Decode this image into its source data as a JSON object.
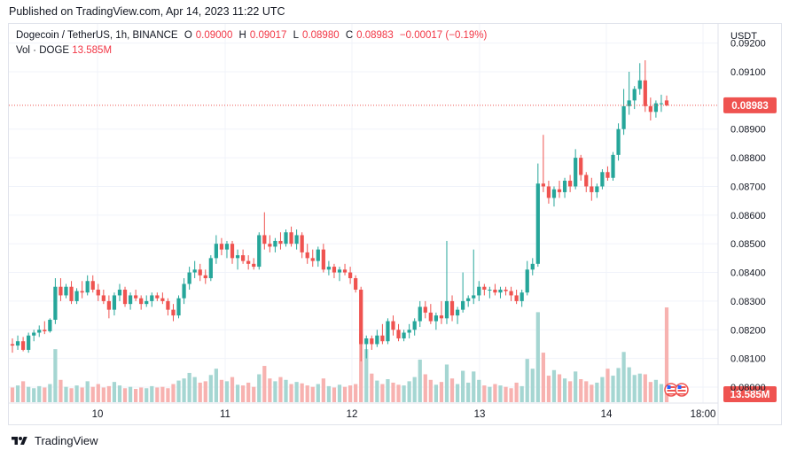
{
  "published": "Published on TradingView.com, Apr 14, 2023 11:22 UTC",
  "legend": {
    "symbol": "Dogecoin / TetherUS, 1h, BINANCE",
    "o_label": "O",
    "o": "0.09000",
    "h_label": "H",
    "h": "0.09017",
    "l_label": "L",
    "l": "0.08980",
    "c_label": "C",
    "c": "0.08983",
    "change": "−0.00017 (−0.19%)",
    "vol_label": "Vol · DOGE",
    "vol_value": "13.585M"
  },
  "footer": {
    "brand": "TradingView"
  },
  "colors": {
    "up": "#26a69a",
    "down": "#ef5350",
    "up_vol": "#a5d6d2",
    "down_vol": "#f7b2b0",
    "price_line": "#ef5350",
    "grid": "#f0f3fa"
  },
  "chart_data": {
    "type": "candlestick",
    "currency_label": "USDT",
    "y_ticks": [
      "0.08000",
      "0.08100",
      "0.08200",
      "0.08300",
      "0.08400",
      "0.08500",
      "0.08600",
      "0.08700",
      "0.08800",
      "0.08900",
      "0.09100",
      "0.09200"
    ],
    "x_ticks": [
      "10",
      "11",
      "12",
      "13",
      "14",
      "18:00"
    ],
    "last_price": "0.08983",
    "last_volume": "13.585M",
    "candles": [
      [
        0.0815,
        0.0817,
        0.0812,
        0.08145
      ],
      [
        0.08145,
        0.0818,
        0.0813,
        0.0816
      ],
      [
        0.0816,
        0.08175,
        0.08125,
        0.0813
      ],
      [
        0.0813,
        0.0819,
        0.0812,
        0.0818
      ],
      [
        0.0818,
        0.082,
        0.0816,
        0.0819
      ],
      [
        0.0819,
        0.08215,
        0.08175,
        0.082
      ],
      [
        0.082,
        0.0823,
        0.08185,
        0.08195
      ],
      [
        0.08195,
        0.0824,
        0.0819,
        0.08235
      ],
      [
        0.08235,
        0.0838,
        0.0822,
        0.0835
      ],
      [
        0.0835,
        0.0838,
        0.083,
        0.0832
      ],
      [
        0.0832,
        0.0836,
        0.0831,
        0.0835
      ],
      [
        0.0835,
        0.0837,
        0.0829,
        0.083
      ],
      [
        0.083,
        0.08345,
        0.0829,
        0.08335
      ],
      [
        0.08335,
        0.0837,
        0.0831,
        0.0833
      ],
      [
        0.0833,
        0.0839,
        0.0832,
        0.0837
      ],
      [
        0.0837,
        0.0839,
        0.0833,
        0.0834
      ],
      [
        0.0834,
        0.0836,
        0.083,
        0.0832
      ],
      [
        0.0832,
        0.0834,
        0.0829,
        0.083
      ],
      [
        0.083,
        0.0832,
        0.0824,
        0.0827
      ],
      [
        0.0827,
        0.0833,
        0.0825,
        0.0832
      ],
      [
        0.0832,
        0.0836,
        0.083,
        0.0834
      ],
      [
        0.0834,
        0.0835,
        0.0828,
        0.0829
      ],
      [
        0.0829,
        0.0833,
        0.0827,
        0.0832
      ],
      [
        0.0832,
        0.0834,
        0.083,
        0.0831
      ],
      [
        0.0831,
        0.0832,
        0.0827,
        0.0829
      ],
      [
        0.0829,
        0.0832,
        0.0828,
        0.083
      ],
      [
        0.083,
        0.0833,
        0.0828,
        0.0832
      ],
      [
        0.0832,
        0.0833,
        0.083,
        0.0831
      ],
      [
        0.0831,
        0.0833,
        0.0829,
        0.083
      ],
      [
        0.083,
        0.0831,
        0.0825,
        0.0827
      ],
      [
        0.0827,
        0.0829,
        0.0823,
        0.0825
      ],
      [
        0.0825,
        0.0832,
        0.0824,
        0.0831
      ],
      [
        0.0831,
        0.0838,
        0.0829,
        0.0836
      ],
      [
        0.0836,
        0.0842,
        0.0834,
        0.084
      ],
      [
        0.084,
        0.0844,
        0.0838,
        0.0841
      ],
      [
        0.0841,
        0.0843,
        0.0837,
        0.0839
      ],
      [
        0.0839,
        0.0841,
        0.0836,
        0.0838
      ],
      [
        0.0838,
        0.0846,
        0.0837,
        0.0845
      ],
      [
        0.0845,
        0.0853,
        0.0843,
        0.085
      ],
      [
        0.085,
        0.0852,
        0.0846,
        0.0848
      ],
      [
        0.0848,
        0.0851,
        0.0845,
        0.085
      ],
      [
        0.085,
        0.0851,
        0.0843,
        0.0845
      ],
      [
        0.0845,
        0.0848,
        0.0841,
        0.0846
      ],
      [
        0.0846,
        0.0848,
        0.0843,
        0.0844
      ],
      [
        0.0844,
        0.0846,
        0.0841,
        0.0843
      ],
      [
        0.0843,
        0.0845,
        0.0841,
        0.0842
      ],
      [
        0.0842,
        0.0854,
        0.0841,
        0.0853
      ],
      [
        0.0853,
        0.0861,
        0.0848,
        0.085
      ],
      [
        0.085,
        0.0853,
        0.0847,
        0.0849
      ],
      [
        0.0849,
        0.0852,
        0.0847,
        0.0851
      ],
      [
        0.0851,
        0.0854,
        0.0848,
        0.085
      ],
      [
        0.085,
        0.0855,
        0.0849,
        0.0854
      ],
      [
        0.0854,
        0.0856,
        0.0849,
        0.085
      ],
      [
        0.085,
        0.0855,
        0.0848,
        0.0853
      ],
      [
        0.0853,
        0.0854,
        0.0845,
        0.0847
      ],
      [
        0.0847,
        0.085,
        0.0843,
        0.0845
      ],
      [
        0.0845,
        0.0848,
        0.0842,
        0.0844
      ],
      [
        0.0844,
        0.0849,
        0.0842,
        0.0848
      ],
      [
        0.0848,
        0.085,
        0.084,
        0.0841
      ],
      [
        0.0841,
        0.0844,
        0.0839,
        0.0842
      ],
      [
        0.0842,
        0.0843,
        0.0838,
        0.084
      ],
      [
        0.084,
        0.0842,
        0.0837,
        0.0841
      ],
      [
        0.0841,
        0.0843,
        0.0839,
        0.084
      ],
      [
        0.084,
        0.0842,
        0.0836,
        0.0838
      ],
      [
        0.0838,
        0.0839,
        0.0833,
        0.0834
      ],
      [
        0.0834,
        0.0835,
        0.0809,
        0.0815
      ],
      [
        0.0815,
        0.0818,
        0.081,
        0.0817
      ],
      [
        0.0817,
        0.0818,
        0.0813,
        0.0815
      ],
      [
        0.0815,
        0.082,
        0.0814,
        0.0818
      ],
      [
        0.0818,
        0.0822,
        0.0815,
        0.0816
      ],
      [
        0.0816,
        0.0824,
        0.0815,
        0.0823
      ],
      [
        0.0823,
        0.0825,
        0.0818,
        0.082
      ],
      [
        0.082,
        0.0822,
        0.0816,
        0.0817
      ],
      [
        0.0817,
        0.082,
        0.0816,
        0.0819
      ],
      [
        0.0819,
        0.0822,
        0.0817,
        0.082
      ],
      [
        0.082,
        0.0824,
        0.0818,
        0.0823
      ],
      [
        0.0823,
        0.083,
        0.0821,
        0.0828
      ],
      [
        0.0828,
        0.083,
        0.0824,
        0.0826
      ],
      [
        0.0826,
        0.0829,
        0.0822,
        0.0823
      ],
      [
        0.0823,
        0.0826,
        0.082,
        0.0825
      ],
      [
        0.0825,
        0.083,
        0.0822,
        0.0824
      ],
      [
        0.0824,
        0.0851,
        0.0822,
        0.083
      ],
      [
        0.083,
        0.0832,
        0.0823,
        0.0825
      ],
      [
        0.0825,
        0.0828,
        0.0822,
        0.0827
      ],
      [
        0.0827,
        0.084,
        0.0826,
        0.083
      ],
      [
        0.083,
        0.0832,
        0.0828,
        0.0831
      ],
      [
        0.0831,
        0.0848,
        0.0829,
        0.0832
      ],
      [
        0.0832,
        0.0837,
        0.083,
        0.0835
      ],
      [
        0.0835,
        0.0836,
        0.0832,
        0.0834
      ],
      [
        0.0834,
        0.0835,
        0.0831,
        0.0834
      ],
      [
        0.0834,
        0.0836,
        0.0832,
        0.0833
      ],
      [
        0.0833,
        0.0835,
        0.0831,
        0.0834
      ],
      [
        0.0834,
        0.0835,
        0.0832,
        0.08335
      ],
      [
        0.08335,
        0.0835,
        0.083,
        0.0832
      ],
      [
        0.0832,
        0.0834,
        0.0829,
        0.083
      ],
      [
        0.083,
        0.0834,
        0.0828,
        0.0833
      ],
      [
        0.0833,
        0.0844,
        0.0832,
        0.0841
      ],
      [
        0.0841,
        0.0845,
        0.0839,
        0.0843
      ],
      [
        0.0843,
        0.0878,
        0.0842,
        0.0871
      ],
      [
        0.0871,
        0.0888,
        0.0868,
        0.087
      ],
      [
        0.087,
        0.0872,
        0.0864,
        0.0866
      ],
      [
        0.0866,
        0.087,
        0.0863,
        0.0869
      ],
      [
        0.0869,
        0.0872,
        0.0866,
        0.0868
      ],
      [
        0.0868,
        0.0873,
        0.0866,
        0.0872
      ],
      [
        0.0872,
        0.0874,
        0.0868,
        0.087
      ],
      [
        0.087,
        0.0883,
        0.0869,
        0.088
      ],
      [
        0.088,
        0.0881,
        0.0872,
        0.0874
      ],
      [
        0.0874,
        0.0875,
        0.0868,
        0.087
      ],
      [
        0.087,
        0.0873,
        0.0865,
        0.0868
      ],
      [
        0.0868,
        0.0871,
        0.0866,
        0.087
      ],
      [
        0.087,
        0.0876,
        0.0869,
        0.0875
      ],
      [
        0.0875,
        0.0877,
        0.0872,
        0.0873
      ],
      [
        0.0873,
        0.0882,
        0.0872,
        0.0881
      ],
      [
        0.0881,
        0.0892,
        0.0879,
        0.089
      ],
      [
        0.089,
        0.0904,
        0.0888,
        0.0898
      ],
      [
        0.0898,
        0.091,
        0.0895,
        0.09
      ],
      [
        0.09,
        0.0905,
        0.0897,
        0.0904
      ],
      [
        0.0904,
        0.0913,
        0.0902,
        0.0907
      ],
      [
        0.0907,
        0.0914,
        0.0896,
        0.0898
      ],
      [
        0.0898,
        0.0901,
        0.0893,
        0.0896
      ],
      [
        0.0896,
        0.09,
        0.0894,
        0.0899
      ],
      [
        0.0899,
        0.0902,
        0.0896,
        0.0899
      ],
      [
        0.09,
        0.09017,
        0.0898,
        0.08983
      ]
    ],
    "volumes": [
      2.1,
      2.4,
      3.0,
      2.2,
      2.0,
      2.3,
      2.1,
      2.6,
      7.6,
      3.2,
      2.2,
      2.0,
      2.4,
      2.1,
      3.0,
      2.2,
      2.6,
      2.1,
      2.3,
      2.9,
      2.4,
      2.0,
      2.2,
      1.9,
      2.1,
      2.0,
      2.3,
      2.1,
      2.2,
      2.0,
      2.6,
      3.1,
      3.4,
      4.2,
      3.6,
      2.8,
      3.0,
      3.9,
      4.8,
      3.2,
      3.0,
      3.6,
      2.5,
      2.4,
      2.8,
      2.2,
      4.0,
      5.2,
      3.4,
      3.0,
      3.6,
      3.2,
      2.6,
      2.9,
      2.7,
      2.4,
      2.2,
      2.6,
      3.4,
      2.3,
      2.1,
      2.5,
      2.2,
      2.4,
      2.6,
      9.8,
      7.6,
      4.1,
      3.1,
      2.6,
      3.3,
      2.8,
      2.5,
      2.4,
      3.0,
      3.6,
      6.1,
      4.0,
      3.2,
      2.5,
      2.9,
      5.4,
      3.4,
      2.6,
      4.5,
      2.8,
      4.4,
      3.2,
      2.4,
      2.2,
      2.6,
      2.4,
      2.2,
      2.0,
      2.8,
      2.3,
      6.2,
      4.8,
      12.9,
      7.1,
      3.8,
      4.6,
      4.0,
      3.4,
      3.0,
      4.4,
      3.3,
      3.0,
      2.5,
      2.8,
      3.6,
      4.8,
      3.8,
      4.9,
      7.2,
      5.0,
      3.9,
      4.1,
      4.0,
      2.9,
      3.2,
      2.6,
      13.585
    ]
  }
}
